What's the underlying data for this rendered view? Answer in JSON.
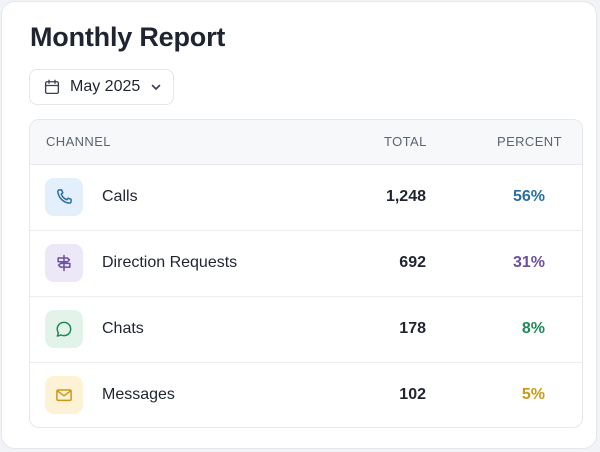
{
  "header": {
    "title": "Monthly Report"
  },
  "date_picker": {
    "value": "May 2025",
    "icon": "calendar-icon"
  },
  "table": {
    "columns": {
      "channel": "CHANNEL",
      "total": "TOTAL",
      "percent": "PERCENT"
    },
    "rows": [
      {
        "channel": "Calls",
        "total": "1,248",
        "percent": "56%",
        "icon": "phone-icon",
        "accent": "#2b6f9e",
        "icon_bg": "#e3effa"
      },
      {
        "channel": "Direction Requests",
        "total": "692",
        "percent": "31%",
        "icon": "signpost-icon",
        "accent": "#6b4fa3",
        "icon_bg": "#ece8f8"
      },
      {
        "channel": "Chats",
        "total": "178",
        "percent": "8%",
        "icon": "chat-bubble-icon",
        "accent": "#1f8a57",
        "icon_bg": "#e2f4ea"
      },
      {
        "channel": "Messages",
        "total": "102",
        "percent": "5%",
        "icon": "envelope-icon",
        "accent": "#c99a17",
        "icon_bg": "#fdf1d6"
      }
    ]
  }
}
